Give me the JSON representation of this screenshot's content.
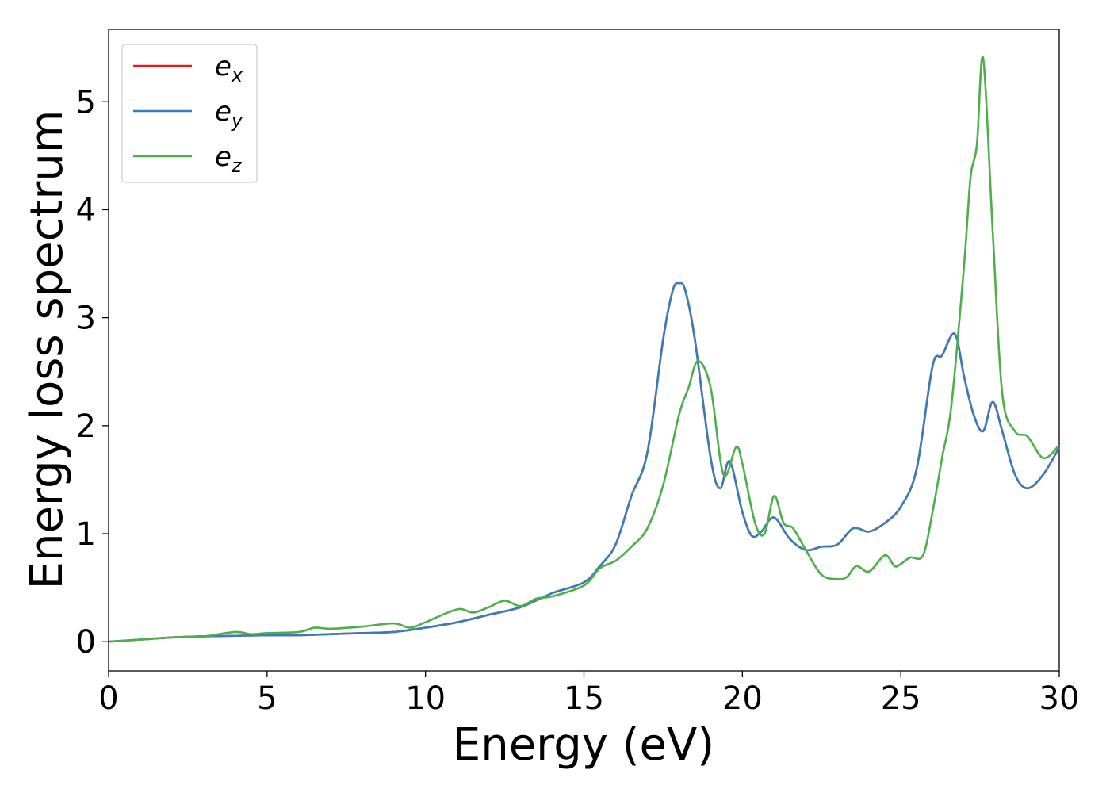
{
  "chart_data": {
    "type": "line",
    "xlabel": "Energy (eV)",
    "ylabel": "Energy loss spectrum",
    "xlim": [
      0,
      30
    ],
    "ylim": [
      -0.27,
      5.67
    ],
    "xticks": [
      "0",
      "5",
      "10",
      "15",
      "20",
      "25",
      "30"
    ],
    "yticks": [
      "0",
      "1",
      "2",
      "3",
      "4",
      "5"
    ],
    "grid": false,
    "legend_position": "top-left",
    "series": [
      {
        "name": "e",
        "sub": "x",
        "color": "#e41a1c",
        "x": [
          0,
          1,
          2,
          3,
          4,
          5,
          6,
          7,
          8,
          9,
          10,
          11,
          12,
          13,
          14,
          15,
          15.5,
          16,
          16.5,
          17,
          17.5,
          17.8,
          18,
          18.2,
          18.5,
          19,
          19.3,
          19.6,
          20,
          20.3,
          20.6,
          21,
          21.5,
          22,
          22.5,
          23,
          23.5,
          24,
          24.5,
          25,
          25.5,
          26,
          26.3,
          26.7,
          27,
          27.3,
          27.6,
          27.9,
          28.2,
          28.6,
          29,
          29.5,
          30
        ],
        "y": [
          0,
          0.02,
          0.04,
          0.05,
          0.055,
          0.06,
          0.06,
          0.07,
          0.08,
          0.09,
          0.13,
          0.18,
          0.25,
          0.32,
          0.45,
          0.55,
          0.7,
          0.9,
          1.35,
          1.75,
          2.8,
          3.25,
          3.32,
          3.25,
          2.8,
          1.7,
          1.42,
          1.67,
          1.2,
          0.98,
          1.02,
          1.15,
          0.95,
          0.85,
          0.88,
          0.9,
          1.05,
          1.02,
          1.1,
          1.25,
          1.6,
          2.55,
          2.65,
          2.85,
          2.45,
          2.1,
          1.95,
          2.22,
          1.95,
          1.55,
          1.42,
          1.55,
          1.8
        ]
      },
      {
        "name": "e",
        "sub": "y",
        "color": "#377eb8",
        "x": [
          0,
          1,
          2,
          3,
          4,
          5,
          6,
          7,
          8,
          9,
          10,
          11,
          12,
          13,
          14,
          15,
          15.5,
          16,
          16.5,
          17,
          17.5,
          17.8,
          18,
          18.2,
          18.5,
          19,
          19.3,
          19.6,
          20,
          20.3,
          20.6,
          21,
          21.5,
          22,
          22.5,
          23,
          23.5,
          24,
          24.5,
          25,
          25.5,
          26,
          26.3,
          26.7,
          27,
          27.3,
          27.6,
          27.9,
          28.2,
          28.6,
          29,
          29.5,
          30
        ],
        "y": [
          0,
          0.02,
          0.04,
          0.05,
          0.055,
          0.06,
          0.06,
          0.07,
          0.08,
          0.09,
          0.13,
          0.18,
          0.25,
          0.32,
          0.45,
          0.55,
          0.7,
          0.9,
          1.35,
          1.75,
          2.8,
          3.25,
          3.32,
          3.25,
          2.8,
          1.7,
          1.42,
          1.67,
          1.2,
          0.98,
          1.02,
          1.15,
          0.95,
          0.85,
          0.88,
          0.9,
          1.05,
          1.02,
          1.1,
          1.25,
          1.6,
          2.55,
          2.65,
          2.85,
          2.45,
          2.1,
          1.95,
          2.22,
          1.95,
          1.55,
          1.42,
          1.55,
          1.8
        ]
      },
      {
        "name": "e",
        "sub": "z",
        "color": "#4daf4a",
        "x": [
          0,
          1,
          2,
          3,
          4,
          4.5,
          5,
          6,
          6.5,
          7,
          8,
          9,
          9.5,
          10,
          11,
          11.5,
          12,
          12.5,
          13,
          13.5,
          14,
          15,
          15.5,
          16,
          16.5,
          17,
          17.5,
          18,
          18.3,
          18.6,
          19,
          19.4,
          19.8,
          20,
          20.4,
          20.7,
          21,
          21.3,
          21.6,
          22,
          22.5,
          23,
          23.3,
          23.6,
          24,
          24.5,
          24.8,
          25,
          25.3,
          25.7,
          26,
          26.3,
          26.6,
          27,
          27.2,
          27.4,
          27.6,
          27.9,
          28.2,
          28.6,
          29,
          29.5,
          30
        ],
        "y": [
          0,
          0.02,
          0.04,
          0.05,
          0.09,
          0.07,
          0.08,
          0.09,
          0.13,
          0.12,
          0.14,
          0.17,
          0.13,
          0.18,
          0.3,
          0.27,
          0.32,
          0.38,
          0.33,
          0.4,
          0.42,
          0.52,
          0.68,
          0.75,
          0.88,
          1.05,
          1.45,
          2.1,
          2.35,
          2.6,
          2.35,
          1.55,
          1.8,
          1.65,
          1.1,
          1.0,
          1.35,
          1.1,
          1.05,
          0.85,
          0.62,
          0.58,
          0.6,
          0.7,
          0.65,
          0.8,
          0.7,
          0.72,
          0.78,
          0.8,
          1.2,
          1.7,
          2.2,
          3.5,
          4.3,
          4.6,
          5.4,
          3.8,
          2.3,
          1.95,
          1.9,
          1.7,
          1.82
        ]
      }
    ]
  }
}
